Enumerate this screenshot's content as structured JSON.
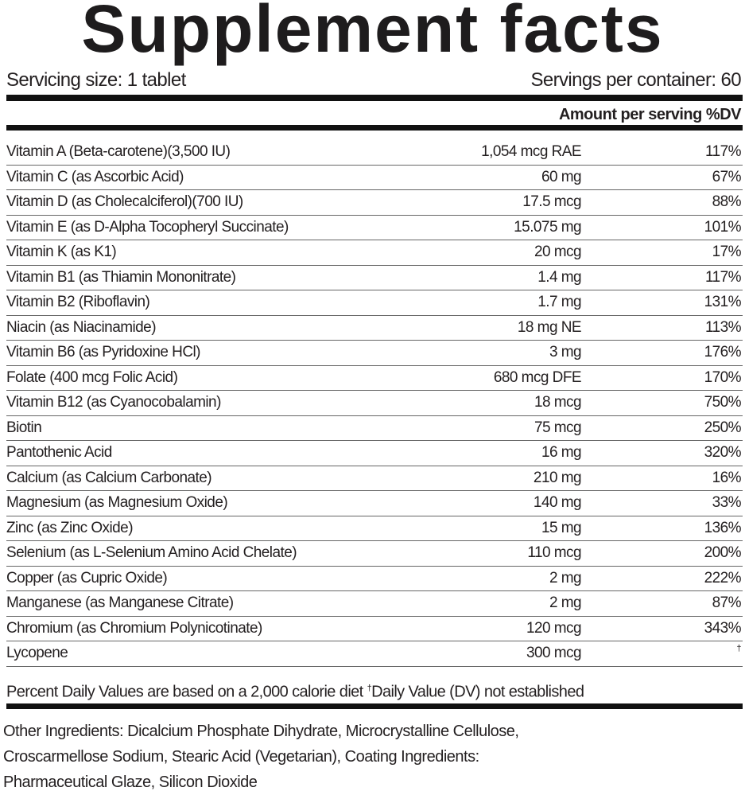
{
  "title": "Supplement facts",
  "serving_size": "Servicing size: 1 tablet",
  "servings_per_container": "Servings per container: 60",
  "column_header": "Amount per serving %DV",
  "nutrients": [
    {
      "name": "Vitamin A  (Beta-carotene)(3,500 IU)",
      "amount": "1,054 mcg RAE",
      "dv": "117%"
    },
    {
      "name": "Vitamin C (as Ascorbic Acid)",
      "amount": "60 mg",
      "dv": "67%"
    },
    {
      "name": "Vitamin D (as Cholecalciferol)(700 IU)",
      "amount": "17.5 mcg",
      "dv": "88%"
    },
    {
      "name": "Vitamin E (as D-Alpha Tocopheryl Succinate)",
      "amount": "15.075 mg",
      "dv": "101%"
    },
    {
      "name": "Vitamin K (as K1)",
      "amount": "20 mcg",
      "dv": "17%"
    },
    {
      "name": "Vitamin B1 (as Thiamin Mononitrate)",
      "amount": "1.4 mg",
      "dv": "117%"
    },
    {
      "name": "Vitamin B2 (Riboflavin)",
      "amount": "1.7 mg",
      "dv": "131%"
    },
    {
      "name": "Niacin (as Niacinamide)",
      "amount": "18 mg NE",
      "dv": "113%"
    },
    {
      "name": "Vitamin B6 (as Pyridoxine HCl)",
      "amount": "3 mg",
      "dv": "176%"
    },
    {
      "name": "Folate (400 mcg Folic Acid)",
      "amount": "680 mcg DFE",
      "dv": "170%"
    },
    {
      "name": "Vitamin B12 (as Cyanocobalamin)",
      "amount": "18 mcg",
      "dv": "750%"
    },
    {
      "name": "Biotin",
      "amount": "75 mcg",
      "dv": "250%"
    },
    {
      "name": "Pantothenic Acid",
      "amount": "16 mg",
      "dv": "320%"
    },
    {
      "name": "Calcium (as Calcium Carbonate)",
      "amount": "210 mg",
      "dv": "16%"
    },
    {
      "name": "Magnesium (as Magnesium Oxide)",
      "amount": "140 mg",
      "dv": "33%"
    },
    {
      "name": "Zinc (as Zinc Oxide)",
      "amount": "15 mg",
      "dv": "136%"
    },
    {
      "name": "Selenium (as L-Selenium Amino Acid Chelate)",
      "amount": "110 mcg",
      "dv": "200%"
    },
    {
      "name": "Copper (as Cupric Oxide)",
      "amount": "2 mg",
      "dv": "222%"
    },
    {
      "name": "Manganese (as Manganese Citrate)",
      "amount": "2 mg",
      "dv": "87%"
    },
    {
      "name": "Chromium (as Chromium Polynicotinate)",
      "amount": "120 mcg",
      "dv": "343%"
    },
    {
      "name": "Lycopene",
      "amount": "300 mcg",
      "dv": "†"
    }
  ],
  "footnote": {
    "text": "Percent Daily Values are based on a 2,000 calorie diet ",
    "dagger": "†",
    "dagger_text": "Daily Value (DV) not established"
  },
  "other_ingredients": "Other Ingredients: Dicalcium Phosphate Dihydrate, Microcrystalline Cellulose, Croscarmellose Sodium, Stearic Acid (Vegetarian), Coating Ingredients: Pharmaceutical Glaze, Silicon Dioxide"
}
